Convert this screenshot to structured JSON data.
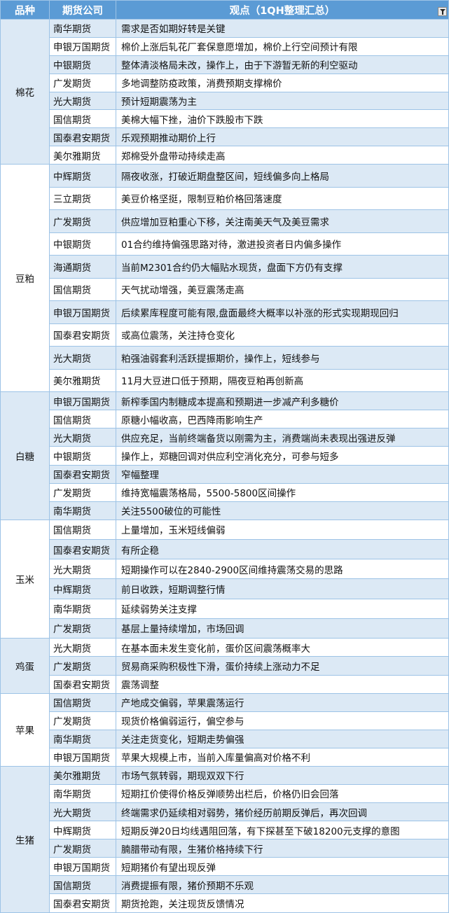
{
  "header": {
    "variety": "品种",
    "company": "期货公司",
    "view": "观点（1QH整理汇总）",
    "filter_icon": "filter-icon"
  },
  "colors": {
    "header_bg": "#5b9bd5",
    "stripe": "#dce9f5",
    "border": "#9dc3e6"
  },
  "groups": [
    {
      "variety": "棉花",
      "rows": [
        {
          "company": "南华期货",
          "view": "需求是否如期好转是关键"
        },
        {
          "company": "申银万国期货",
          "view": "棉价上涨后轧花厂套保意愿增加，棉价上行空间预计有限"
        },
        {
          "company": "中银期货",
          "view": "整体清淡格局未改，操作上，由于下游暂无新的利空驱动"
        },
        {
          "company": "广发期货",
          "view": "多地调整防疫政策，消费预期支撑棉价"
        },
        {
          "company": "光大期货",
          "view": "预计短期震荡为主"
        },
        {
          "company": "国信期货",
          "view": "美棉大幅下挫，油价下跌股市下跌"
        },
        {
          "company": "国泰君安期货",
          "view": "乐观预期推动期价上行"
        },
        {
          "company": "美尔雅期货",
          "view": "郑棉受外盘带动持续走高"
        }
      ]
    },
    {
      "variety": "豆粕",
      "rows": [
        {
          "company": "中辉期货",
          "view": "隔夜收涨，打破近期盘整区间，短线偏多向上格局"
        },
        {
          "company": "三立期货",
          "view": "美豆价格坚挺，限制豆粕价格回落速度"
        },
        {
          "company": "广发期货",
          "view": "供应增加豆粕重心下移，关注南美天气及美豆需求"
        },
        {
          "company": "中银期货",
          "view": "01合约维持偏强思路对待，激进投资者日内偏多操作"
        },
        {
          "company": "海通期货",
          "view": "当前M2301合约仍大幅贴水现货，盘面下方仍有支撑"
        },
        {
          "company": "国信期货",
          "view": "天气扰动增强，美豆震荡走高"
        },
        {
          "company": "申银万国期货",
          "view": "后续累库程度可能有限,盘面最终大概率以补涨的形式实现期现回归"
        },
        {
          "company": "国泰君安期货",
          "view": "或高位震荡，关注持仓变化"
        },
        {
          "company": "光大期货",
          "view": "粕强油弱套利活跃提振期价，操作上，短线参与"
        },
        {
          "company": "美尔雅期货",
          "view": "11月大豆进口低于预期，隔夜豆粕再创新高"
        }
      ]
    },
    {
      "variety": "白糖",
      "rows": [
        {
          "company": "申银万国期货",
          "view": "新榨季国内制糖成本提高和预期进一步减产利多糖价"
        },
        {
          "company": "国信期货",
          "view": "原糖小幅收高，巴西降雨影响生产"
        },
        {
          "company": "光大期货",
          "view": "供应充足，当前终端备货以刚需为主，消费端尚未表现出强进反弹"
        },
        {
          "company": "中银期货",
          "view": "操作上，郑糖回调对供应利空消化充分，可参与短多"
        },
        {
          "company": "国泰君安期货",
          "view": "窄幅整理"
        },
        {
          "company": "广发期货",
          "view": "维持宽幅震荡格局，5500-5800区间操作"
        },
        {
          "company": "南华期货",
          "view": "关注5500破位的可能性"
        }
      ]
    },
    {
      "variety": "玉米",
      "rows": [
        {
          "company": "国信期货",
          "view": "上量增加，玉米短线偏弱"
        },
        {
          "company": "国泰君安期货",
          "view": "有所企稳"
        },
        {
          "company": "光大期货",
          "view": "短期操作可以在2840-2900区间维持震荡交易的思路"
        },
        {
          "company": "中辉期货",
          "view": "前日收跌，短期调整行情"
        },
        {
          "company": "南华期货",
          "view": "延续弱势关注支撑"
        },
        {
          "company": "广发期货",
          "view": "基层上量持续增加，市场回调"
        }
      ]
    },
    {
      "variety": "鸡蛋",
      "rows": [
        {
          "company": "光大期货",
          "view": "在基本面未发生变化前，蛋价区间震荡概率大"
        },
        {
          "company": "广发期货",
          "view": "贸易商采购积极性下滑，蛋价持续上涨动力不足"
        },
        {
          "company": "国泰君安期货",
          "view": "震荡调整"
        }
      ]
    },
    {
      "variety": "苹果",
      "rows": [
        {
          "company": "国信期货",
          "view": "产地成交偏弱，苹果震荡运行"
        },
        {
          "company": "广发期货",
          "view": "现货价格偏弱运行，偏空参与"
        },
        {
          "company": "南华期货",
          "view": "关注走货变化，短期走势偏强"
        },
        {
          "company": "申银万国期货",
          "view": "苹果大规模上市，当前入库量偏高对价格不利"
        }
      ]
    },
    {
      "variety": "生猪",
      "rows": [
        {
          "company": "美尔雅期货",
          "view": "市场气氛转弱，期现双双下行"
        },
        {
          "company": "南华期货",
          "view": "短期扛价使得价格反弹顺势出栏后，价格仍旧会回落"
        },
        {
          "company": "光大期货",
          "view": "终端需求仍延续相对弱势，猪价经历前期反弹后，再次回调"
        },
        {
          "company": "中辉期货",
          "view": "短期反弹20日均线遇阻回落，有下探甚至下破18200元支撑的意图"
        },
        {
          "company": "广发期货",
          "view": "腩腊带动有限，生猪价格持续下行"
        },
        {
          "company": "申银万国期货",
          "view": "短期猪价有望出现反弹"
        },
        {
          "company": "国信期货",
          "view": "消费提振有限，猪价预期不乐观"
        },
        {
          "company": "国泰君安期货",
          "view": "期货抢跑，关注现货反馈情况"
        }
      ]
    }
  ]
}
